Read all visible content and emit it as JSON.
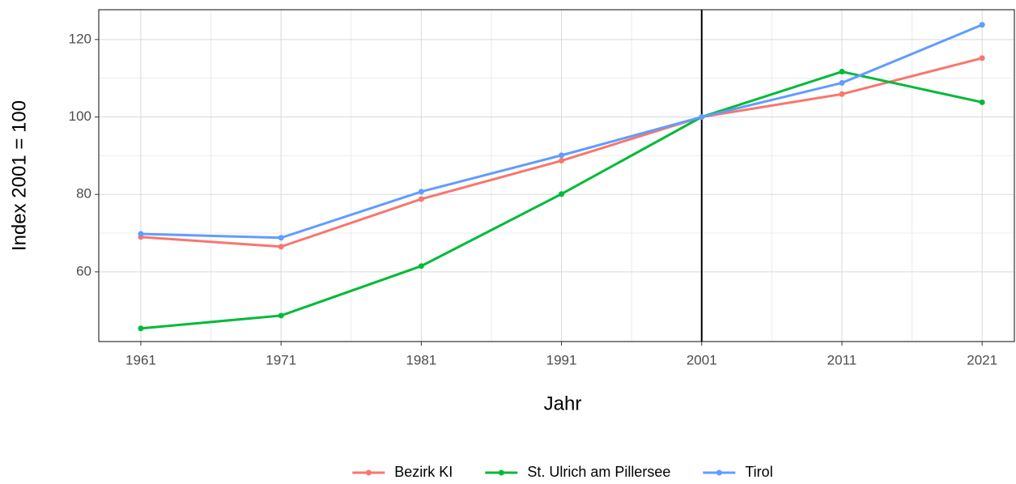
{
  "chart_data": {
    "type": "line",
    "x_label": "Jahr",
    "y_label": "Index 2001 = 100",
    "x": [
      1961,
      1971,
      1981,
      1991,
      2001,
      2011,
      2021
    ],
    "series": [
      {
        "name": "Bezirk KI",
        "color": "#F8766D",
        "values": [
          69.0,
          66.5,
          78.8,
          88.7,
          100,
          105.9,
          115.2
        ]
      },
      {
        "name": "St. Ulrich am Pillersee",
        "color": "#00BA38",
        "values": [
          45.4,
          48.7,
          61.5,
          80.1,
          100,
          111.7,
          103.8
        ]
      },
      {
        "name": "Tirol",
        "color": "#619CFF",
        "values": [
          69.8,
          68.8,
          80.7,
          90.1,
          100,
          108.8,
          123.8
        ]
      }
    ],
    "xlim": [
      1958,
      2023.3
    ],
    "xticks": [
      1961,
      1971,
      1981,
      1991,
      2001,
      2011,
      2021
    ],
    "ylim": [
      42,
      127.7
    ],
    "yticks": [
      60,
      80,
      100,
      120
    ],
    "vline": 2001,
    "grid": true,
    "legend": "bottom"
  }
}
